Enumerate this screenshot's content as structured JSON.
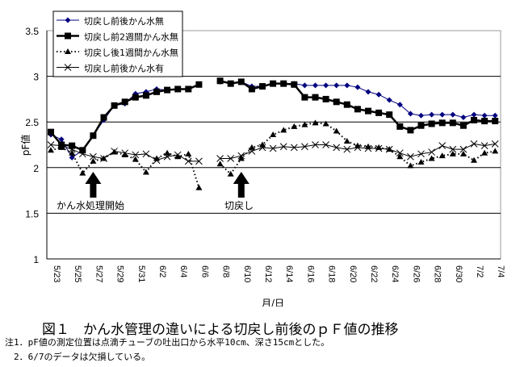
{
  "chart_data": {
    "type": "line",
    "ylabel": "pF値",
    "xlabel": "月/日",
    "ylim": [
      1,
      3.5
    ],
    "yticks": [
      "1",
      "1.5",
      "2",
      "2.5",
      "3",
      "3.5"
    ],
    "grid": "horizontal",
    "legend_position": "top-left",
    "xticks": [
      "5/23",
      "5/25",
      "5/27",
      "5/29",
      "5/31",
      "6/2",
      "6/4",
      "6/6",
      "6/8",
      "6/10",
      "6/12",
      "6/14",
      "6/16",
      "6/18",
      "6/20",
      "6/22",
      "6/24",
      "6/26",
      "6/28",
      "6/30",
      "7/2",
      "7/4"
    ],
    "x": [
      "5/23",
      "5/24",
      "5/25",
      "5/26",
      "5/27",
      "5/28",
      "5/29",
      "5/30",
      "5/31",
      "6/1",
      "6/2",
      "6/3",
      "6/4",
      "6/5",
      "6/6",
      "6/8",
      "6/9",
      "6/10",
      "6/11",
      "6/12",
      "6/13",
      "6/14",
      "6/15",
      "6/16",
      "6/17",
      "6/18",
      "6/19",
      "6/20",
      "6/21",
      "6/22",
      "6/23",
      "6/24",
      "6/25",
      "6/26",
      "6/27",
      "6/28",
      "6/29",
      "6/30",
      "7/1",
      "7/2",
      "7/3",
      "7/4"
    ],
    "series": [
      {
        "name": "切戻し前後かん水無",
        "color": "#000080",
        "marker": "diamond",
        "line": "solid",
        "values": [
          2.36,
          2.31,
          2.11,
          2.19,
          2.35,
          2.52,
          2.68,
          2.7,
          2.81,
          2.83,
          2.86,
          2.85,
          2.86,
          2.86,
          2.91,
          2.94,
          2.92,
          2.94,
          2.89,
          2.89,
          2.92,
          2.92,
          2.92,
          2.9,
          2.9,
          2.9,
          2.9,
          2.9,
          2.88,
          2.83,
          2.8,
          2.74,
          2.69,
          2.59,
          2.57,
          2.58,
          2.58,
          2.58,
          2.55,
          2.58,
          2.57,
          2.57
        ]
      },
      {
        "name": "切戻し前2週間かん水無",
        "color": "#000000",
        "marker": "square",
        "line": "thick",
        "values": [
          2.39,
          2.25,
          2.24,
          2.19,
          2.35,
          2.55,
          2.68,
          2.72,
          2.77,
          2.79,
          2.83,
          2.85,
          2.86,
          2.86,
          2.91,
          2.95,
          2.92,
          2.94,
          2.86,
          2.89,
          2.92,
          2.92,
          2.91,
          2.77,
          2.77,
          2.75,
          2.72,
          2.69,
          2.64,
          2.62,
          2.6,
          2.58,
          2.45,
          2.41,
          2.46,
          2.48,
          2.49,
          2.49,
          2.46,
          2.52,
          2.51,
          2.51
        ]
      },
      {
        "name": "切戻し後1週間かん水無",
        "color": "#000000",
        "marker": "triangle",
        "line": "dotted",
        "values": [
          2.19,
          2.22,
          2.16,
          1.94,
          2.07,
          2.1,
          2.17,
          2.14,
          2.09,
          1.95,
          2.1,
          2.16,
          2.12,
          2.15,
          1.78,
          2.04,
          1.93,
          2.1,
          2.22,
          2.25,
          2.36,
          2.41,
          2.45,
          2.47,
          2.49,
          2.48,
          2.4,
          2.29,
          2.24,
          2.23,
          2.22,
          2.2,
          2.12,
          2.02,
          2.06,
          2.1,
          2.13,
          2.15,
          2.15,
          2.08,
          2.16,
          2.18
        ]
      },
      {
        "name": "切戻し前後かん水有",
        "color": "#000000",
        "marker": "cross",
        "line": "thin",
        "values": [
          2.25,
          2.24,
          2.2,
          2.15,
          2.12,
          2.1,
          2.18,
          2.16,
          2.14,
          2.15,
          2.08,
          2.12,
          2.14,
          2.07,
          2.07,
          2.1,
          2.1,
          2.13,
          2.18,
          2.22,
          2.21,
          2.23,
          2.22,
          2.23,
          2.25,
          2.25,
          2.22,
          2.2,
          2.22,
          2.21,
          2.21,
          2.2,
          2.16,
          2.12,
          2.15,
          2.17,
          2.24,
          2.2,
          2.2,
          2.26,
          2.24,
          2.26
        ]
      }
    ],
    "annotations": [
      {
        "text": "かん水処理開始",
        "x": "5/27"
      },
      {
        "text": "切戻し",
        "x": "6/10"
      }
    ]
  },
  "caption": {
    "title": "図１　かん水管理の違いによる切戻し前後のｐＦ値の推移",
    "note1": "注1．pF値の測定位置は点滴チューブの吐出口から水平10cm、深さ15cmとした。",
    "note2": "　2．6/7のデータは欠損している。"
  }
}
